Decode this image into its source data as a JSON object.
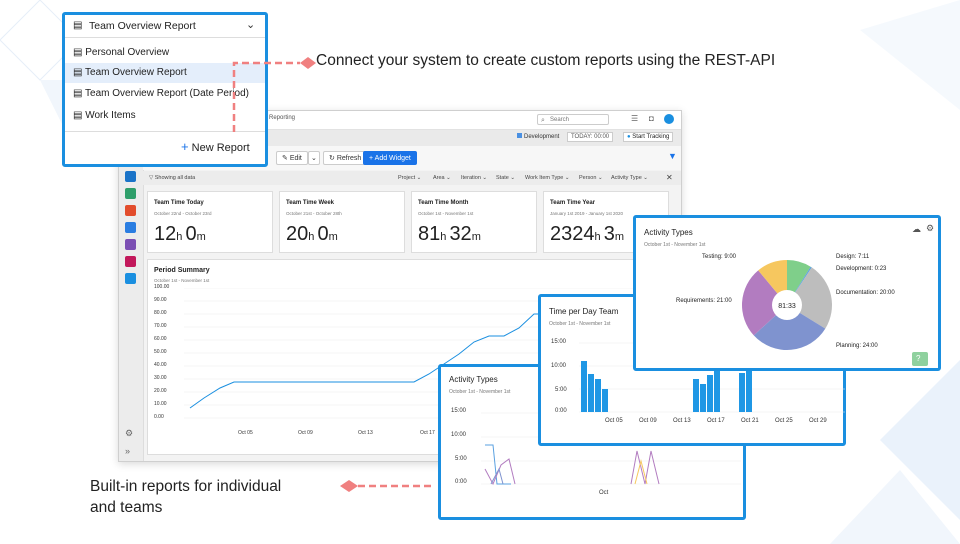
{
  "dropdown": {
    "selected": "Team Overview Report",
    "items": [
      "Personal Overview",
      "Team Overview Report",
      "Team Overview Report (Date Period)",
      "Work Items"
    ],
    "new_report": "New Report"
  },
  "callouts": {
    "top": "Connect your system to create custom reports using the REST-API",
    "bottom_line1": "Built-in reports for individual",
    "bottom_line2": "and teams"
  },
  "app": {
    "breadcrumb": "Reporting",
    "search_placeholder": "Search",
    "tag": "Development",
    "today": "TODAY: 00:00",
    "start_tracking": "Start Tracking",
    "toolbar": {
      "edit": "Edit",
      "refresh": "Refresh",
      "add_widget": "Add Widget"
    },
    "filter_label": "Showing all data",
    "filters": [
      "Project",
      "Area",
      "Iteration",
      "State",
      "Work Item Type",
      "Person",
      "Activity Type"
    ],
    "cards": [
      {
        "title": "Team Time Today",
        "sub": "October 22nd - October 23rd",
        "h": "12",
        "m": "0"
      },
      {
        "title": "Team Time Week",
        "sub": "October 21st - October 28th",
        "h": "20",
        "m": "0"
      },
      {
        "title": "Team Time Month",
        "sub": "October 1st - November 1st",
        "h": "81",
        "m": "32"
      },
      {
        "title": "Team Time Year",
        "sub": "January 1st 2019 - January 1st 2020",
        "h": "2324",
        "m": "3"
      }
    ],
    "period": {
      "title": "Period Summary",
      "sub": "October 1st - November 1st",
      "yticks": [
        "100.00",
        "90.00",
        "80.00",
        "70.00",
        "60.00",
        "50.00",
        "40.00",
        "30.00",
        "20.00",
        "10.00",
        "0.00"
      ],
      "xticks": [
        "Oct 05",
        "Oct 09",
        "Oct 13",
        "Oct 17"
      ]
    }
  },
  "time_per_day": {
    "title": "Time per Day Team",
    "sub": "October 1st - November 1st",
    "yticks": [
      "15:00",
      "10:00",
      "5:00",
      "0:00"
    ],
    "xticks": [
      "Oct 05",
      "Oct 09",
      "Oct 13",
      "Oct 17",
      "Oct 21",
      "Oct 25",
      "Oct 29"
    ]
  },
  "activity_small": {
    "title": "Activity Types",
    "sub": "October 1st - November 1st",
    "yticks": [
      "15:00",
      "10:00",
      "5:00",
      "0:00"
    ],
    "xtick": "Oct"
  },
  "chart_data": {
    "type": "pie",
    "title": "Activity Types",
    "subtitle": "October 1st - November 1st",
    "center_label": "81:33",
    "slices": [
      {
        "label": "Design: 7:11",
        "value": 7.18,
        "color": "#7fcf8a"
      },
      {
        "label": "Development: 0:23",
        "value": 0.38,
        "color": "#5aa0e0"
      },
      {
        "label": "Documentation: 20:00",
        "value": 20,
        "color": "#bdbdbd"
      },
      {
        "label": "Planning: 24:00",
        "value": 24,
        "color": "#7f93cf"
      },
      {
        "label": "Requirements: 21:00",
        "value": 21,
        "color": "#b27cc0"
      },
      {
        "label": "Testing: 9:00",
        "value": 9,
        "color": "#f6c75f"
      }
    ]
  },
  "colors": {
    "accent": "#1a8fe0",
    "callout": "#f08080"
  }
}
